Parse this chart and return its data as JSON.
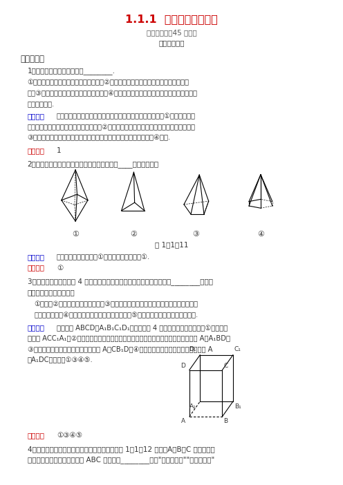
{
  "title": "1.1.1 棱柱、棱锥和棱台",
  "subtitle": "（建议用时：45 分钟）",
  "badge": "【学业达标】",
  "section1": "一、填空题",
  "bg_color": "#ffffff",
  "title_color": "#cc0000",
  "text_color": "#333333",
  "gray_color": "#555555",
  "blue_color": "#0000cc",
  "red_color": "#cc0000"
}
